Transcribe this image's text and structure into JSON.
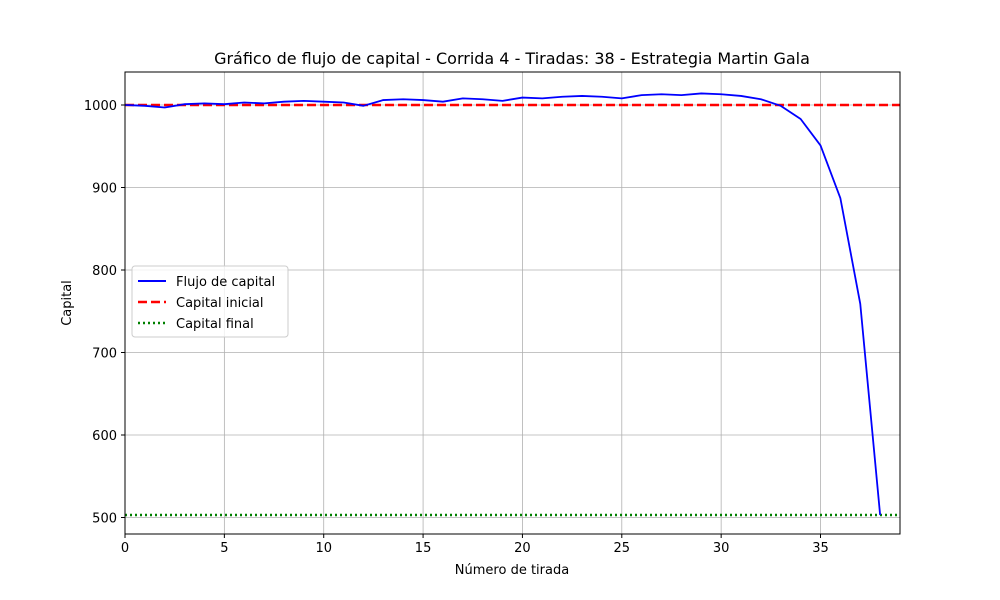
{
  "chart_data": {
    "type": "line",
    "title": "Gráfico de flujo de capital - Corrida 4 - Tiradas: 38 - Estrategia Martin Gala",
    "xlabel": "Número de tirada",
    "ylabel": "Capital",
    "xlim": [
      0,
      39
    ],
    "ylim": [
      480,
      1040
    ],
    "xticks": [
      0,
      5,
      10,
      15,
      20,
      25,
      30,
      35
    ],
    "yticks": [
      500,
      600,
      700,
      800,
      900,
      1000
    ],
    "grid": true,
    "legend_position": "center-left",
    "series": [
      {
        "name": "Flujo de capital",
        "style": "solid",
        "color": "#0000ff",
        "x": [
          0,
          1,
          2,
          3,
          4,
          5,
          6,
          7,
          8,
          9,
          10,
          11,
          12,
          13,
          14,
          15,
          16,
          17,
          18,
          19,
          20,
          21,
          22,
          23,
          24,
          25,
          26,
          27,
          28,
          29,
          30,
          31,
          32,
          33,
          34,
          35,
          36,
          37,
          38
        ],
        "y": [
          1000,
          999,
          997,
          1001,
          1002,
          1001,
          1003,
          1002,
          1004,
          1005,
          1004,
          1003,
          999,
          1006,
          1007,
          1006,
          1004,
          1008,
          1007,
          1005,
          1009,
          1008,
          1010,
          1011,
          1010,
          1008,
          1012,
          1013,
          1012,
          1014,
          1013,
          1011,
          1007,
          999,
          983,
          951,
          887,
          759,
          503
        ]
      },
      {
        "name": "Capital inicial",
        "style": "dashed",
        "color": "#ff0000",
        "y_constant": 1000
      },
      {
        "name": "Capital final",
        "style": "dotted",
        "color": "#008000",
        "y_constant": 503
      }
    ]
  }
}
